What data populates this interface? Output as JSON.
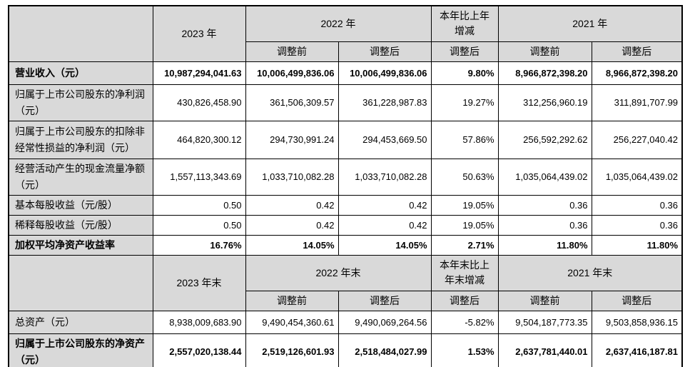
{
  "colors": {
    "page_bg": "#ffffff",
    "header_bg": "#d9d9d9",
    "label_bg": "#d9d9d9",
    "border": "#000000",
    "text": "#000000"
  },
  "sections": [
    {
      "header": {
        "corner": "",
        "current": "2023 年",
        "prior_group": "2022 年",
        "change": "本年比上年\n增减",
        "prior2_group": "2021 年",
        "sub": [
          "调整前",
          "调整后",
          "调整后",
          "调整前",
          "调整后"
        ]
      },
      "rows": [
        {
          "label": "营业收入（元）",
          "bold": true,
          "values": [
            "10,987,294,041.63",
            "10,006,499,836.06",
            "10,006,499,836.06",
            "9.80%",
            "8,966,872,398.20",
            "8,966,872,398.20"
          ]
        },
        {
          "label": "归属于上市公司股东的净利润\n（元）",
          "bold": false,
          "values": [
            "430,826,458.90",
            "361,506,309.57",
            "361,228,987.83",
            "19.27%",
            "312,256,960.19",
            "311,891,707.99"
          ]
        },
        {
          "label": "归属于上市公司股东的扣除非\n经常性损益的净利润（元）",
          "bold": false,
          "values": [
            "464,820,300.12",
            "294,730,991.24",
            "294,453,669.50",
            "57.86%",
            "256,592,292.62",
            "256,227,040.42"
          ]
        },
        {
          "label": "经营活动产生的现金流量净额\n（元）",
          "bold": false,
          "values": [
            "1,557,113,343.69",
            "1,033,710,082.28",
            "1,033,710,082.28",
            "50.63%",
            "1,035,064,439.02",
            "1,035,064,439.02"
          ]
        },
        {
          "label": "基本每股收益（元/股）",
          "bold": false,
          "values": [
            "0.50",
            "0.42",
            "0.42",
            "19.05%",
            "0.36",
            "0.36"
          ]
        },
        {
          "label": "稀释每股收益（元/股）",
          "bold": false,
          "values": [
            "0.50",
            "0.42",
            "0.42",
            "19.05%",
            "0.36",
            "0.36"
          ]
        },
        {
          "label": "加权平均净资产收益率",
          "bold": true,
          "values": [
            "16.76%",
            "14.05%",
            "14.05%",
            "2.71%",
            "11.80%",
            "11.80%"
          ]
        }
      ]
    },
    {
      "header": {
        "corner": "",
        "current": "2023 年末",
        "prior_group": "2022 年末",
        "change": "本年末比上\n年末增减",
        "prior2_group": "2021 年末",
        "sub": [
          "调整前",
          "调整后",
          "调整后",
          "调整前",
          "调整后"
        ]
      },
      "rows": [
        {
          "label": "总资产（元）",
          "bold": false,
          "values": [
            "8,938,009,683.90",
            "9,490,454,360.61",
            "9,490,069,264.56",
            "-5.82%",
            "9,504,187,773.35",
            "9,503,858,936.15"
          ]
        },
        {
          "label": "归属于上市公司股东的净资产\n（元）",
          "bold": true,
          "values": [
            "2,557,020,138.44",
            "2,519,126,601.93",
            "2,518,484,027.99",
            "1.53%",
            "2,637,781,440.01",
            "2,637,416,187.81"
          ]
        }
      ]
    }
  ]
}
